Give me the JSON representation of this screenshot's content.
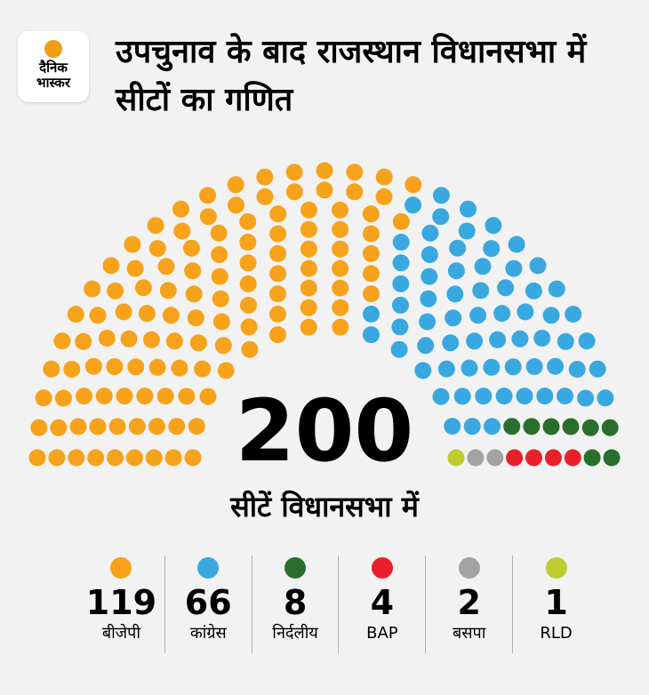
{
  "logo": {
    "text": "दैनिक\nभास्कर"
  },
  "title": "उपचुनाव के बाद राजस्थान विधानसभा में सीटों का गणित",
  "total": "200",
  "subtitle": "सीटें विधानसभा में",
  "chart_data": {
    "type": "parliament",
    "total_seats": 200,
    "series": [
      {
        "name": "बीजेपी",
        "value": 119,
        "color": "#f7a21b"
      },
      {
        "name": "कांग्रेस",
        "value": 66,
        "color": "#3aa8e0"
      },
      {
        "name": "निर्दलीय",
        "value": 8,
        "color": "#2a6e2e"
      },
      {
        "name": "BAP",
        "value": 4,
        "color": "#e8202a"
      },
      {
        "name": "बसपा",
        "value": 2,
        "color": "#a3a3a3"
      },
      {
        "name": "RLD",
        "value": 1,
        "color": "#bfcc2e"
      }
    ]
  },
  "legend": [
    {
      "value": "119",
      "label": "बीजेपी",
      "color": "#f7a21b"
    },
    {
      "value": "66",
      "label": "कांग्रेस",
      "color": "#3aa8e0"
    },
    {
      "value": "8",
      "label": "निर्दलीय",
      "color": "#2a6e2e"
    },
    {
      "value": "4",
      "label": "BAP",
      "color": "#e8202a"
    },
    {
      "value": "2",
      "label": "बसपा",
      "color": "#a3a3a3"
    },
    {
      "value": "1",
      "label": "RLD",
      "color": "#bfcc2e"
    }
  ]
}
